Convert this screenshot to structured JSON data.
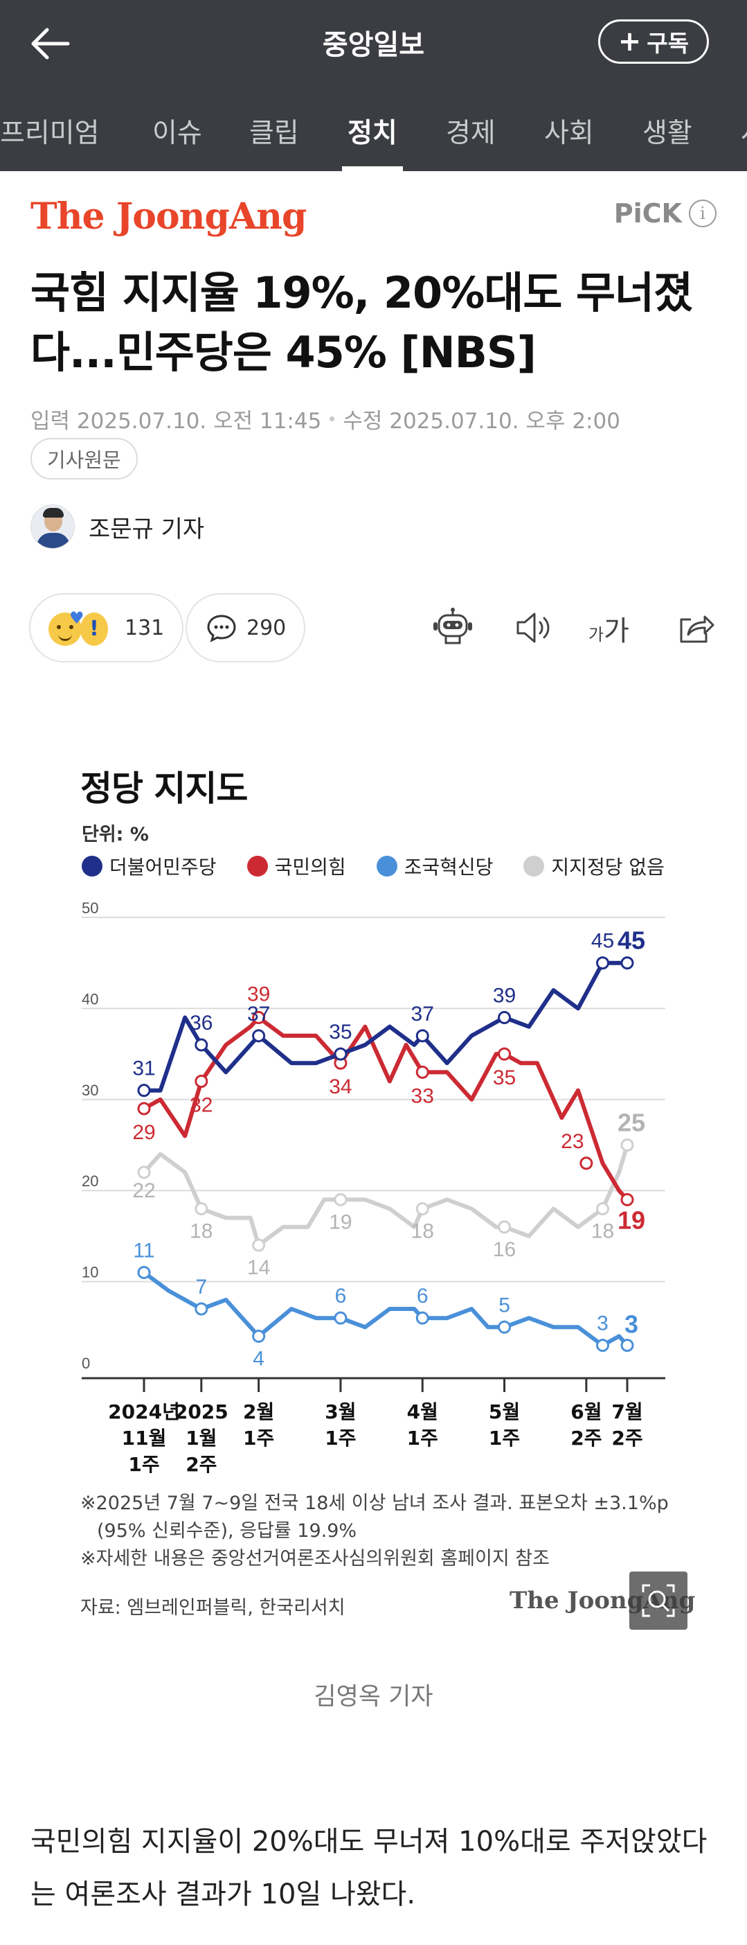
{
  "header": {
    "title": "중앙일보",
    "subscribe_label": "구독",
    "back_icon": "arrow-left-icon",
    "colors": {
      "bar": "#3b3d42"
    }
  },
  "tabs": [
    {
      "label": "프리미엄",
      "active": false
    },
    {
      "label": "이슈",
      "active": false
    },
    {
      "label": "클립",
      "active": false
    },
    {
      "label": "정치",
      "active": true
    },
    {
      "label": "경제",
      "active": false
    },
    {
      "label": "사회",
      "active": false
    },
    {
      "label": "생활",
      "active": false
    },
    {
      "label": "사",
      "active": false
    }
  ],
  "article": {
    "source_logo": "The JoongAng",
    "pick_label": "PiCK",
    "headline": "국힘 지지율 19%, 20%대도 무너졌다...민주당은 45% [NBS]",
    "published": "입력 2025.07.10. 오전 11:45",
    "modified": "수정 2025.07.10. 오후 2:00",
    "original_link_label": "기사원문",
    "reporter": "조문규 기자",
    "reaction_count": "131",
    "comment_count": "290",
    "font_label_small": "가",
    "font_label_big": "가",
    "photo_caption": "김영옥 기자",
    "body": "국민의힘 지지율이 20%대도 무너져 10%대로 주저앉았다는 여론조사 결과가 10일 나왔다."
  },
  "infographic": {
    "unit": "단위: %",
    "notes": [
      "※2025년 7월 7~9일 전국 18세 이상 남녀 조사 결과. 표본오차 ±3.1%p",
      "(95% 신뢰수준), 응답률 19.9%",
      "※자세한 내용은 중앙선거여론조사심의위원회 홈페이지 참조"
    ],
    "source": "자료: 엠브레인퍼블릭, 한국리서치",
    "logo": "The JoongAng"
  },
  "chart_data": {
    "type": "line",
    "title": "정당 지지도",
    "ylim": [
      0,
      50
    ],
    "y_ticks": [
      0,
      10,
      20,
      30,
      40,
      50
    ],
    "grid": true,
    "legend_placement": "top",
    "x_ticks": [
      {
        "i": 0,
        "label": [
          "2024년",
          "11월",
          "1주"
        ]
      },
      {
        "i": 7,
        "label": [
          "2025",
          "1월",
          "2주"
        ]
      },
      {
        "i": 14,
        "label": [
          "2월",
          "1주"
        ]
      },
      {
        "i": 24,
        "label": [
          "3월",
          "1주"
        ]
      },
      {
        "i": 34,
        "label": [
          "4월",
          "1주"
        ]
      },
      {
        "i": 44,
        "label": [
          "5월",
          "1주"
        ]
      },
      {
        "i": 54,
        "label": [
          "6월",
          "2주"
        ]
      },
      {
        "i": 59,
        "label": [
          "7월",
          "2주"
        ]
      }
    ],
    "x_max": 59,
    "series": [
      {
        "name": "더불어민주당",
        "color": "#1f2f8a",
        "points": [
          [
            0,
            31
          ],
          [
            2,
            31
          ],
          [
            5,
            39
          ],
          [
            7,
            36
          ],
          [
            10,
            33
          ],
          [
            14,
            37
          ],
          [
            18,
            34
          ],
          [
            21,
            34
          ],
          [
            24,
            35
          ],
          [
            27,
            36
          ],
          [
            30,
            38
          ],
          [
            33,
            36
          ],
          [
            34,
            37
          ],
          [
            37,
            34
          ],
          [
            40,
            37
          ],
          [
            44,
            39
          ],
          [
            47,
            38
          ],
          [
            50,
            42
          ],
          [
            53,
            40
          ],
          [
            56,
            45
          ],
          [
            59,
            45
          ]
        ],
        "labels": [
          [
            0,
            31
          ],
          [
            7,
            36
          ],
          [
            14,
            37
          ],
          [
            24,
            35
          ],
          [
            34,
            37
          ],
          [
            44,
            39
          ],
          [
            56,
            45
          ]
        ],
        "end_label": 45
      },
      {
        "name": "국민의힘",
        "color": "#cc2a33",
        "points": [
          [
            0,
            29
          ],
          [
            2,
            30
          ],
          [
            5,
            26
          ],
          [
            7,
            32
          ],
          [
            10,
            36
          ],
          [
            13,
            38
          ],
          [
            14,
            39
          ],
          [
            17,
            37
          ],
          [
            21,
            37
          ],
          [
            24,
            34
          ],
          [
            27,
            38
          ],
          [
            30,
            32
          ],
          [
            32,
            36
          ],
          [
            34,
            33
          ],
          [
            37,
            33
          ],
          [
            40,
            30
          ],
          [
            43,
            35
          ],
          [
            44,
            35
          ],
          [
            46,
            34
          ],
          [
            48,
            34
          ],
          [
            51,
            28
          ],
          [
            53,
            31
          ],
          [
            56,
            23
          ],
          [
            58,
            20
          ],
          [
            59,
            19
          ]
        ],
        "labels": [
          [
            0,
            29
          ],
          [
            7,
            32
          ],
          [
            14,
            39
          ],
          [
            24,
            34
          ],
          [
            34,
            33
          ],
          [
            44,
            35
          ],
          [
            54,
            23
          ]
        ],
        "end_label": 19
      },
      {
        "name": "조국혁신당",
        "color": "#4a90d9",
        "points": [
          [
            0,
            11
          ],
          [
            3,
            9
          ],
          [
            7,
            7
          ],
          [
            10,
            8
          ],
          [
            13,
            5
          ],
          [
            14,
            4
          ],
          [
            18,
            7
          ],
          [
            21,
            6
          ],
          [
            24,
            6
          ],
          [
            27,
            5
          ],
          [
            30,
            7
          ],
          [
            33,
            7
          ],
          [
            34,
            6
          ],
          [
            37,
            6
          ],
          [
            40,
            7
          ],
          [
            42,
            5
          ],
          [
            44,
            5
          ],
          [
            47,
            6
          ],
          [
            50,
            5
          ],
          [
            53,
            5
          ],
          [
            56,
            3
          ],
          [
            58,
            4
          ],
          [
            59,
            3
          ]
        ],
        "labels": [
          [
            0,
            11
          ],
          [
            7,
            7
          ],
          [
            14,
            4
          ],
          [
            24,
            6
          ],
          [
            34,
            6
          ],
          [
            44,
            5
          ],
          [
            56,
            3
          ]
        ],
        "end_label": 3
      },
      {
        "name": "지지정당 없음",
        "color": "#cfcfcf",
        "points": [
          [
            0,
            22
          ],
          [
            2,
            24
          ],
          [
            5,
            22
          ],
          [
            7,
            18
          ],
          [
            10,
            17
          ],
          [
            13,
            17
          ],
          [
            14,
            14
          ],
          [
            17,
            16
          ],
          [
            20,
            16
          ],
          [
            22,
            19
          ],
          [
            24,
            19
          ],
          [
            27,
            19
          ],
          [
            30,
            18
          ],
          [
            33,
            16
          ],
          [
            34,
            18
          ],
          [
            37,
            19
          ],
          [
            40,
            18
          ],
          [
            43,
            16
          ],
          [
            44,
            16
          ],
          [
            47,
            15
          ],
          [
            50,
            18
          ],
          [
            53,
            16
          ],
          [
            56,
            18
          ],
          [
            58,
            22
          ],
          [
            59,
            25
          ]
        ],
        "labels": [
          [
            0,
            22
          ],
          [
            7,
            18
          ],
          [
            14,
            14
          ],
          [
            24,
            19
          ],
          [
            34,
            18
          ],
          [
            44,
            16
          ],
          [
            56,
            18
          ]
        ],
        "end_label": 25
      }
    ]
  }
}
